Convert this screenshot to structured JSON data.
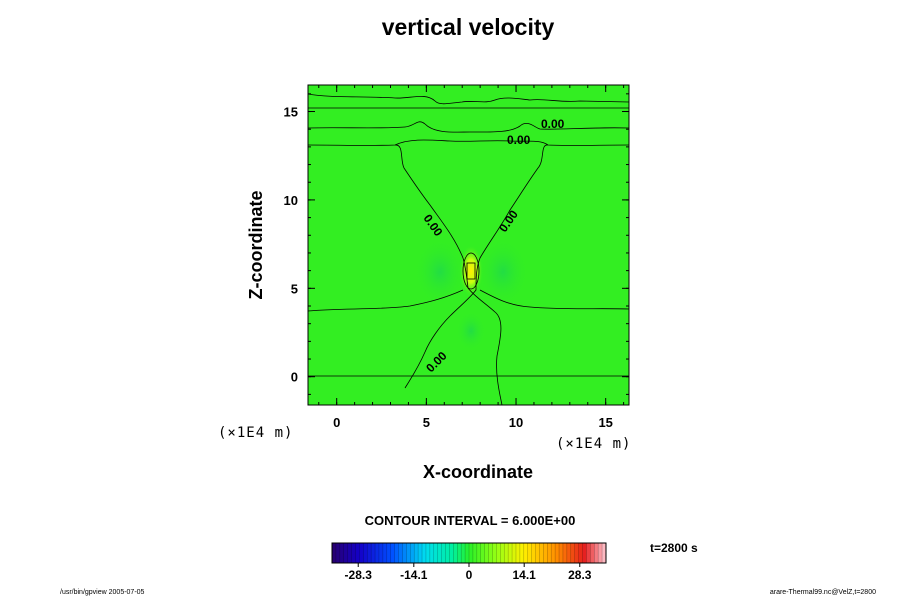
{
  "chart_data": {
    "type": "contour",
    "title": "vertical velocity",
    "xlabel": "X-coordinate",
    "ylabel": "Z-coordinate",
    "x_unit": "(×1E4 m)",
    "z_unit": "(×1E4 m)",
    "xlim": [
      -1.6,
      16.3
    ],
    "ylim": [
      -1.6,
      16.5
    ],
    "x_ticks": [
      0,
      5,
      10,
      15
    ],
    "y_ticks": [
      0,
      5,
      10,
      15
    ],
    "contour_labels": [
      "0.00",
      "0.00",
      "0.00",
      "0.00",
      "0.00"
    ],
    "max_location": [
      7.5,
      6.0
    ],
    "contour_interval_text": "CONTOUR INTERVAL = 6.000E+00",
    "colorbar": {
      "ticks": [
        "-28.3",
        "-14.1",
        "0",
        "14.1",
        "28.3"
      ],
      "range": [
        -35,
        35
      ]
    },
    "time_text": "t=2800 s"
  },
  "footer": {
    "left": "/usr/bin/gpview 2005-07-05",
    "right": "arare-Thermal99.nc@VelZ,t=2800"
  },
  "colors": {
    "field_background": "#33ee22",
    "center_high": "#ffee00",
    "center_mid": "#c8ff10",
    "contour_line": "#000000"
  }
}
